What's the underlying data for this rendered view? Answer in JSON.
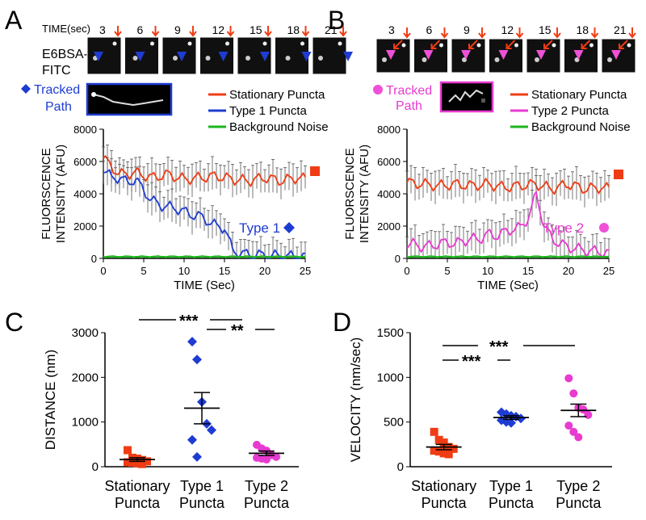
{
  "colors": {
    "stationary": "#f03c14",
    "type1": "#1e3cd2",
    "type2": "#e83ad0",
    "noise": "#1eb41e",
    "arrow": "#f03c14",
    "type1_marker": "#1e3cd2",
    "type2_marker": "#f050d8"
  },
  "panelA": {
    "letter": "A",
    "time_header": "TIME(sec)",
    "times": [
      "3",
      "6",
      "9",
      "12",
      "15",
      "18",
      "21"
    ],
    "row_label_line1": "E6BSA-",
    "row_label_line2": "FITC",
    "tracked_line1": "Tracked",
    "tracked_line2": "Path",
    "annotation": "Type 1",
    "end_marker_icon": "red-square-icon",
    "type_marker_icon": "blue-diamond-icon"
  },
  "panelB": {
    "letter": "B",
    "times": [
      "3",
      "6",
      "9",
      "12",
      "15",
      "18",
      "21"
    ],
    "tracked_line1": "Tracked",
    "tracked_line2": "Path",
    "annotation": "Type 2",
    "end_marker_icon": "red-square-icon",
    "type_marker_icon": "magenta-circle-icon"
  },
  "panelC": {
    "letter": "C",
    "sig_left": "***",
    "sig_right": "**"
  },
  "panelD": {
    "letter": "D",
    "sig_top": "***",
    "sig_bottom": "***"
  },
  "chart_data": [
    {
      "id": "A",
      "type": "line",
      "xlabel": "TIME (Sec)",
      "ylabel": "FLUORSCENCE INTENSITY (AFU)",
      "xlim": [
        0,
        25
      ],
      "ylim": [
        0,
        8000
      ],
      "xticks": [
        0,
        5,
        10,
        15,
        20,
        25
      ],
      "yticks": [
        0,
        2000,
        4000,
        6000,
        8000
      ],
      "legend": [
        "Stationary Puncta",
        "Type 1 Puncta",
        "Background Noise"
      ],
      "series": [
        {
          "name": "Stationary Puncta",
          "color": "stationary",
          "x": [
            0,
            2,
            4,
            6,
            8,
            10,
            12,
            14,
            16,
            18,
            20,
            22,
            24,
            25
          ],
          "y": [
            6200,
            5200,
            5300,
            5000,
            5200,
            4900,
            5000,
            5100,
            4900,
            4800,
            5000,
            4800,
            5000,
            4900
          ]
        },
        {
          "name": "Type 1 Puncta",
          "color": "type1",
          "x": [
            0,
            1,
            2,
            3,
            4,
            5,
            6,
            7,
            8,
            9,
            10,
            11,
            12,
            13,
            14,
            15,
            15.5,
            16,
            17,
            18,
            20,
            22,
            24,
            25
          ],
          "y": [
            5500,
            5000,
            5000,
            4700,
            4900,
            4200,
            3600,
            3300,
            3200,
            3100,
            2900,
            2700,
            2600,
            2300,
            2000,
            1900,
            1200,
            500,
            300,
            250,
            200,
            150,
            120,
            100
          ]
        },
        {
          "name": "Background Noise",
          "color": "noise",
          "x": [
            0,
            5,
            10,
            15,
            20,
            25
          ],
          "y": [
            100,
            100,
            100,
            100,
            100,
            100
          ]
        }
      ]
    },
    {
      "id": "B",
      "type": "line",
      "xlabel": "TIME (Sec)",
      "ylabel": "FLUORSCENCE INTENSITY (AFU)",
      "xlim": [
        0,
        25
      ],
      "ylim": [
        0,
        8000
      ],
      "xticks": [
        0,
        5,
        10,
        15,
        20,
        25
      ],
      "yticks": [
        0,
        2000,
        4000,
        6000,
        8000
      ],
      "legend": [
        "Stationary Puncta",
        "Type 2 Puncta",
        "Background Noise"
      ],
      "series": [
        {
          "name": "Stationary Puncta",
          "color": "stationary",
          "x": [
            0,
            2,
            4,
            6,
            8,
            10,
            12,
            14,
            16,
            18,
            20,
            22,
            24,
            25
          ],
          "y": [
            4700,
            4600,
            4500,
            4600,
            4500,
            4600,
            4400,
            4500,
            4600,
            4300,
            4600,
            4300,
            4400,
            4300
          ]
        },
        {
          "name": "Type 2 Puncta",
          "color": "type2",
          "x": [
            0,
            1,
            2,
            3,
            4,
            5,
            6,
            7,
            8,
            9,
            10,
            11,
            12,
            13,
            14,
            15,
            15.5,
            16,
            16.5,
            17,
            18,
            19,
            20,
            22,
            24,
            25
          ],
          "y": [
            800,
            900,
            700,
            800,
            900,
            1000,
            900,
            1100,
            1200,
            1200,
            1500,
            1400,
            1600,
            1800,
            1900,
            2500,
            3200,
            4000,
            3000,
            2000,
            1200,
            900,
            700,
            500,
            400,
            300
          ]
        },
        {
          "name": "Background Noise",
          "color": "noise",
          "x": [
            0,
            5,
            10,
            15,
            20,
            25
          ],
          "y": [
            100,
            100,
            100,
            100,
            100,
            100
          ]
        }
      ]
    },
    {
      "id": "C",
      "type": "scatter",
      "ylabel": "DISTANCE (nm)",
      "ylim": [
        0,
        3000
      ],
      "yticks": [
        0,
        1000,
        2000,
        3000
      ],
      "categories": [
        "Stationary\nPuncta",
        "Type 1\nPuncta",
        "Type 2\nPuncta"
      ],
      "groups": [
        {
          "category": 0,
          "color": "stationary",
          "marker": "square",
          "values": [
            370,
            200,
            180,
            150,
            120,
            100,
            90,
            80,
            60
          ],
          "mean": 160,
          "sem": 40
        },
        {
          "category": 1,
          "color": "type1",
          "marker": "diamond",
          "values": [
            2800,
            2400,
            1450,
            960,
            820,
            600,
            220
          ],
          "mean": 1310,
          "sem": 350
        },
        {
          "category": 2,
          "color": "type2",
          "marker": "circle",
          "values": [
            490,
            410,
            360,
            260,
            220,
            200,
            180,
            160
          ],
          "mean": 300,
          "sem": 50
        }
      ]
    },
    {
      "id": "D",
      "type": "scatter",
      "ylabel": "VELOCITY (nm/sec)",
      "ylim": [
        0,
        1500
      ],
      "yticks": [
        0,
        500,
        1000,
        1500
      ],
      "categories": [
        "Stationary\nPuncta",
        "Type 1\nPuncta",
        "Type 2\nPuncta"
      ],
      "groups": [
        {
          "category": 0,
          "color": "stationary",
          "marker": "square",
          "values": [
            390,
            300,
            270,
            220,
            200,
            180,
            170,
            150,
            140
          ],
          "mean": 220,
          "sem": 30
        },
        {
          "category": 1,
          "color": "type1",
          "marker": "diamond",
          "values": [
            610,
            590,
            570,
            560,
            540,
            520,
            500,
            490
          ],
          "mean": 550,
          "sem": 20
        },
        {
          "category": 2,
          "color": "type2",
          "marker": "circle",
          "values": [
            990,
            820,
            660,
            640,
            580,
            460,
            390,
            330
          ],
          "mean": 630,
          "sem": 70
        }
      ]
    }
  ]
}
